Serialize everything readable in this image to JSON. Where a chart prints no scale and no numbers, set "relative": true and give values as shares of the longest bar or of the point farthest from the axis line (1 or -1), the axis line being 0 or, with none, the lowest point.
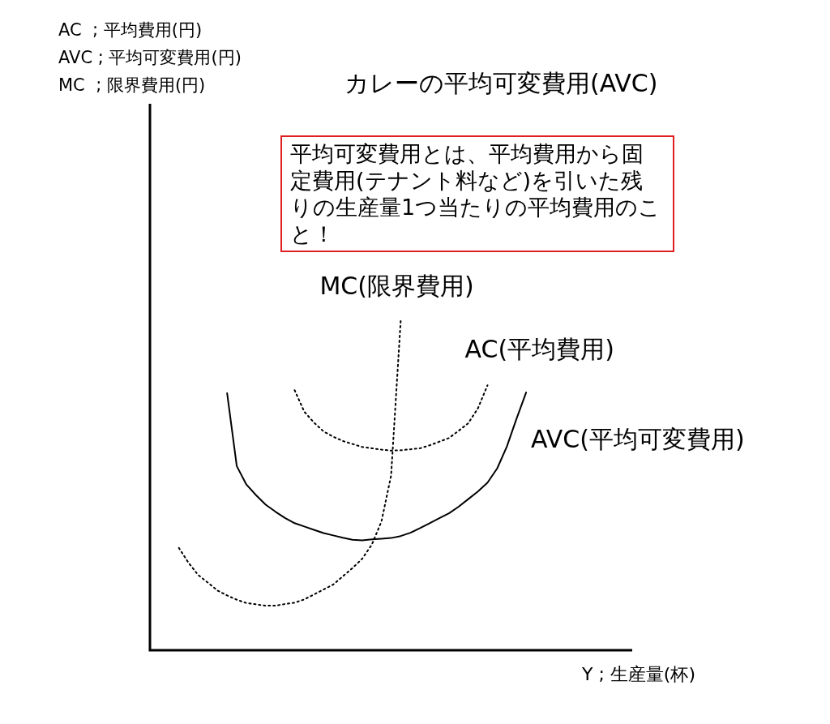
{
  "chart_data": {
    "type": "line",
    "title": "カレーの平均可変費用(AVC)",
    "xlabel": "Y ; 生産量(杯)",
    "relative": true,
    "marker": "none",
    "annotations": [
      "平均可変費用とは、平均費用から固定費用(テナント料など)を引いた残りの生産量1つ当たりの平均費用のこと！",
      "AC  ; 平均費用(円)",
      "AVC ; 平均可変費用(円)",
      "MC  ; 限界費用(円)"
    ],
    "categories": [
      null,
      null,
      null,
      null,
      null,
      null,
      null,
      null,
      null,
      null,
      null,
      null,
      null,
      null,
      null,
      null,
      null,
      null,
      null,
      null,
      null,
      null,
      null,
      null,
      null,
      null,
      null,
      null,
      null,
      null,
      null,
      null,
      null,
      null,
      null,
      null,
      null,
      null,
      null,
      null,
      null,
      null,
      null,
      null,
      null,
      null,
      null,
      null,
      null,
      null,
      null
    ],
    "series": [
      {
        "name": "MC(限界費用)",
        "color": "#000000",
        "line_style": "dotted",
        "values": [
          null,
          null,
          null,
          0.31,
          0.265,
          0.228,
          0.205,
          0.181,
          0.166,
          0.153,
          0.143,
          0.139,
          0.135,
          0.135,
          0.14,
          0.144,
          0.154,
          0.169,
          0.184,
          0.199,
          0.224,
          0.249,
          0.277,
          0.32,
          0.39,
          0.529,
          1,
          null,
          null,
          null,
          null,
          null,
          null,
          null,
          null,
          null,
          null,
          null,
          null,
          null,
          null,
          null,
          null,
          null,
          null,
          null,
          null,
          null,
          null,
          null,
          null
        ]
      },
      {
        "name": "AC(平均費用)",
        "color": "#000000",
        "line_style": "dotted",
        "values": [
          null,
          null,
          null,
          null,
          null,
          null,
          null,
          null,
          null,
          null,
          null,
          null,
          null,
          null,
          null,
          0.788,
          0.723,
          0.69,
          0.663,
          0.647,
          0.634,
          0.625,
          0.616,
          0.612,
          0.608,
          0.605,
          0.606,
          0.609,
          0.612,
          0.621,
          0.632,
          0.643,
          0.665,
          0.688,
          0.733,
          0.803,
          null,
          null,
          null,
          null,
          null,
          null,
          null,
          null,
          null,
          null,
          null,
          null,
          null,
          null,
          null
        ]
      },
      {
        "name": "AVC(平均可変費用)",
        "color": "#000000",
        "line_style": "solid",
        "values": [
          null,
          null,
          null,
          null,
          null,
          null,
          null,
          null,
          0.779,
          0.558,
          0.502,
          0.47,
          0.441,
          0.42,
          0.401,
          0.385,
          0.375,
          0.365,
          0.355,
          0.348,
          0.341,
          0.335,
          0.333,
          0.336,
          0.338,
          0.34,
          0.346,
          0.356,
          0.37,
          0.385,
          0.4,
          0.415,
          0.435,
          0.458,
          0.481,
          0.508,
          0.551,
          0.617,
          0.701,
          0.781,
          null,
          null,
          null,
          null,
          null,
          null,
          null,
          null,
          null,
          null,
          null
        ]
      }
    ]
  }
}
